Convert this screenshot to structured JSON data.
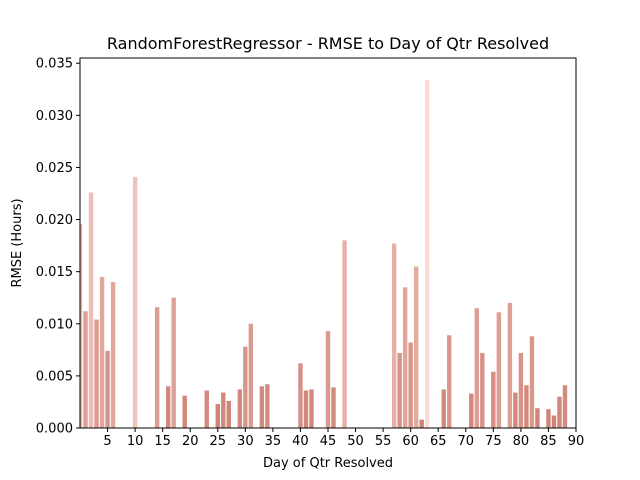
{
  "chart_data": {
    "type": "bar",
    "title": "RandomForestRegressor - RMSE to Day of Qtr Resolved",
    "xlabel": "Day of Qtr Resolved",
    "ylabel": "RMSE (Hours)",
    "xlim": [
      0,
      90
    ],
    "ylim": [
      0,
      0.0355
    ],
    "xticks": [
      5,
      10,
      15,
      20,
      25,
      30,
      35,
      40,
      45,
      50,
      55,
      60,
      65,
      70,
      75,
      80,
      85,
      90
    ],
    "yticks": [
      0.0,
      0.005,
      0.01,
      0.015,
      0.02,
      0.025,
      0.03,
      0.035
    ],
    "ytick_labels": [
      "0.000",
      "0.005",
      "0.010",
      "0.015",
      "0.020",
      "0.025",
      "0.030",
      "0.035"
    ],
    "grid": false,
    "legend": "none",
    "colors": {
      "low": "#cd7f72",
      "high": "#fcdcd6"
    },
    "x": [
      0,
      1,
      2,
      3,
      4,
      5,
      6,
      10,
      14,
      16,
      17,
      19,
      23,
      25,
      26,
      27,
      29,
      30,
      31,
      33,
      34,
      40,
      41,
      42,
      45,
      46,
      48,
      57,
      58,
      59,
      60,
      61,
      62,
      63,
      66,
      67,
      71,
      72,
      73,
      75,
      76,
      78,
      79,
      80,
      81,
      82,
      83,
      85,
      86,
      87,
      88
    ],
    "values": [
      0.0196,
      0.0112,
      0.0226,
      0.0104,
      0.0145,
      0.0074,
      0.014,
      0.0241,
      0.0116,
      0.004,
      0.0125,
      0.0031,
      0.0036,
      0.0023,
      0.0034,
      0.0026,
      0.0037,
      0.0078,
      0.01,
      0.004,
      0.0042,
      0.0062,
      0.0036,
      0.0037,
      0.0093,
      0.0039,
      0.018,
      0.0177,
      0.0072,
      0.0135,
      0.0082,
      0.0155,
      0.0008,
      0.0334,
      0.0037,
      0.0089,
      0.0033,
      0.0115,
      0.0072,
      0.0054,
      0.0111,
      0.012,
      0.0034,
      0.0072,
      0.0041,
      0.0088,
      0.0019,
      0.0018,
      0.0012,
      0.003,
      0.0041
    ]
  }
}
